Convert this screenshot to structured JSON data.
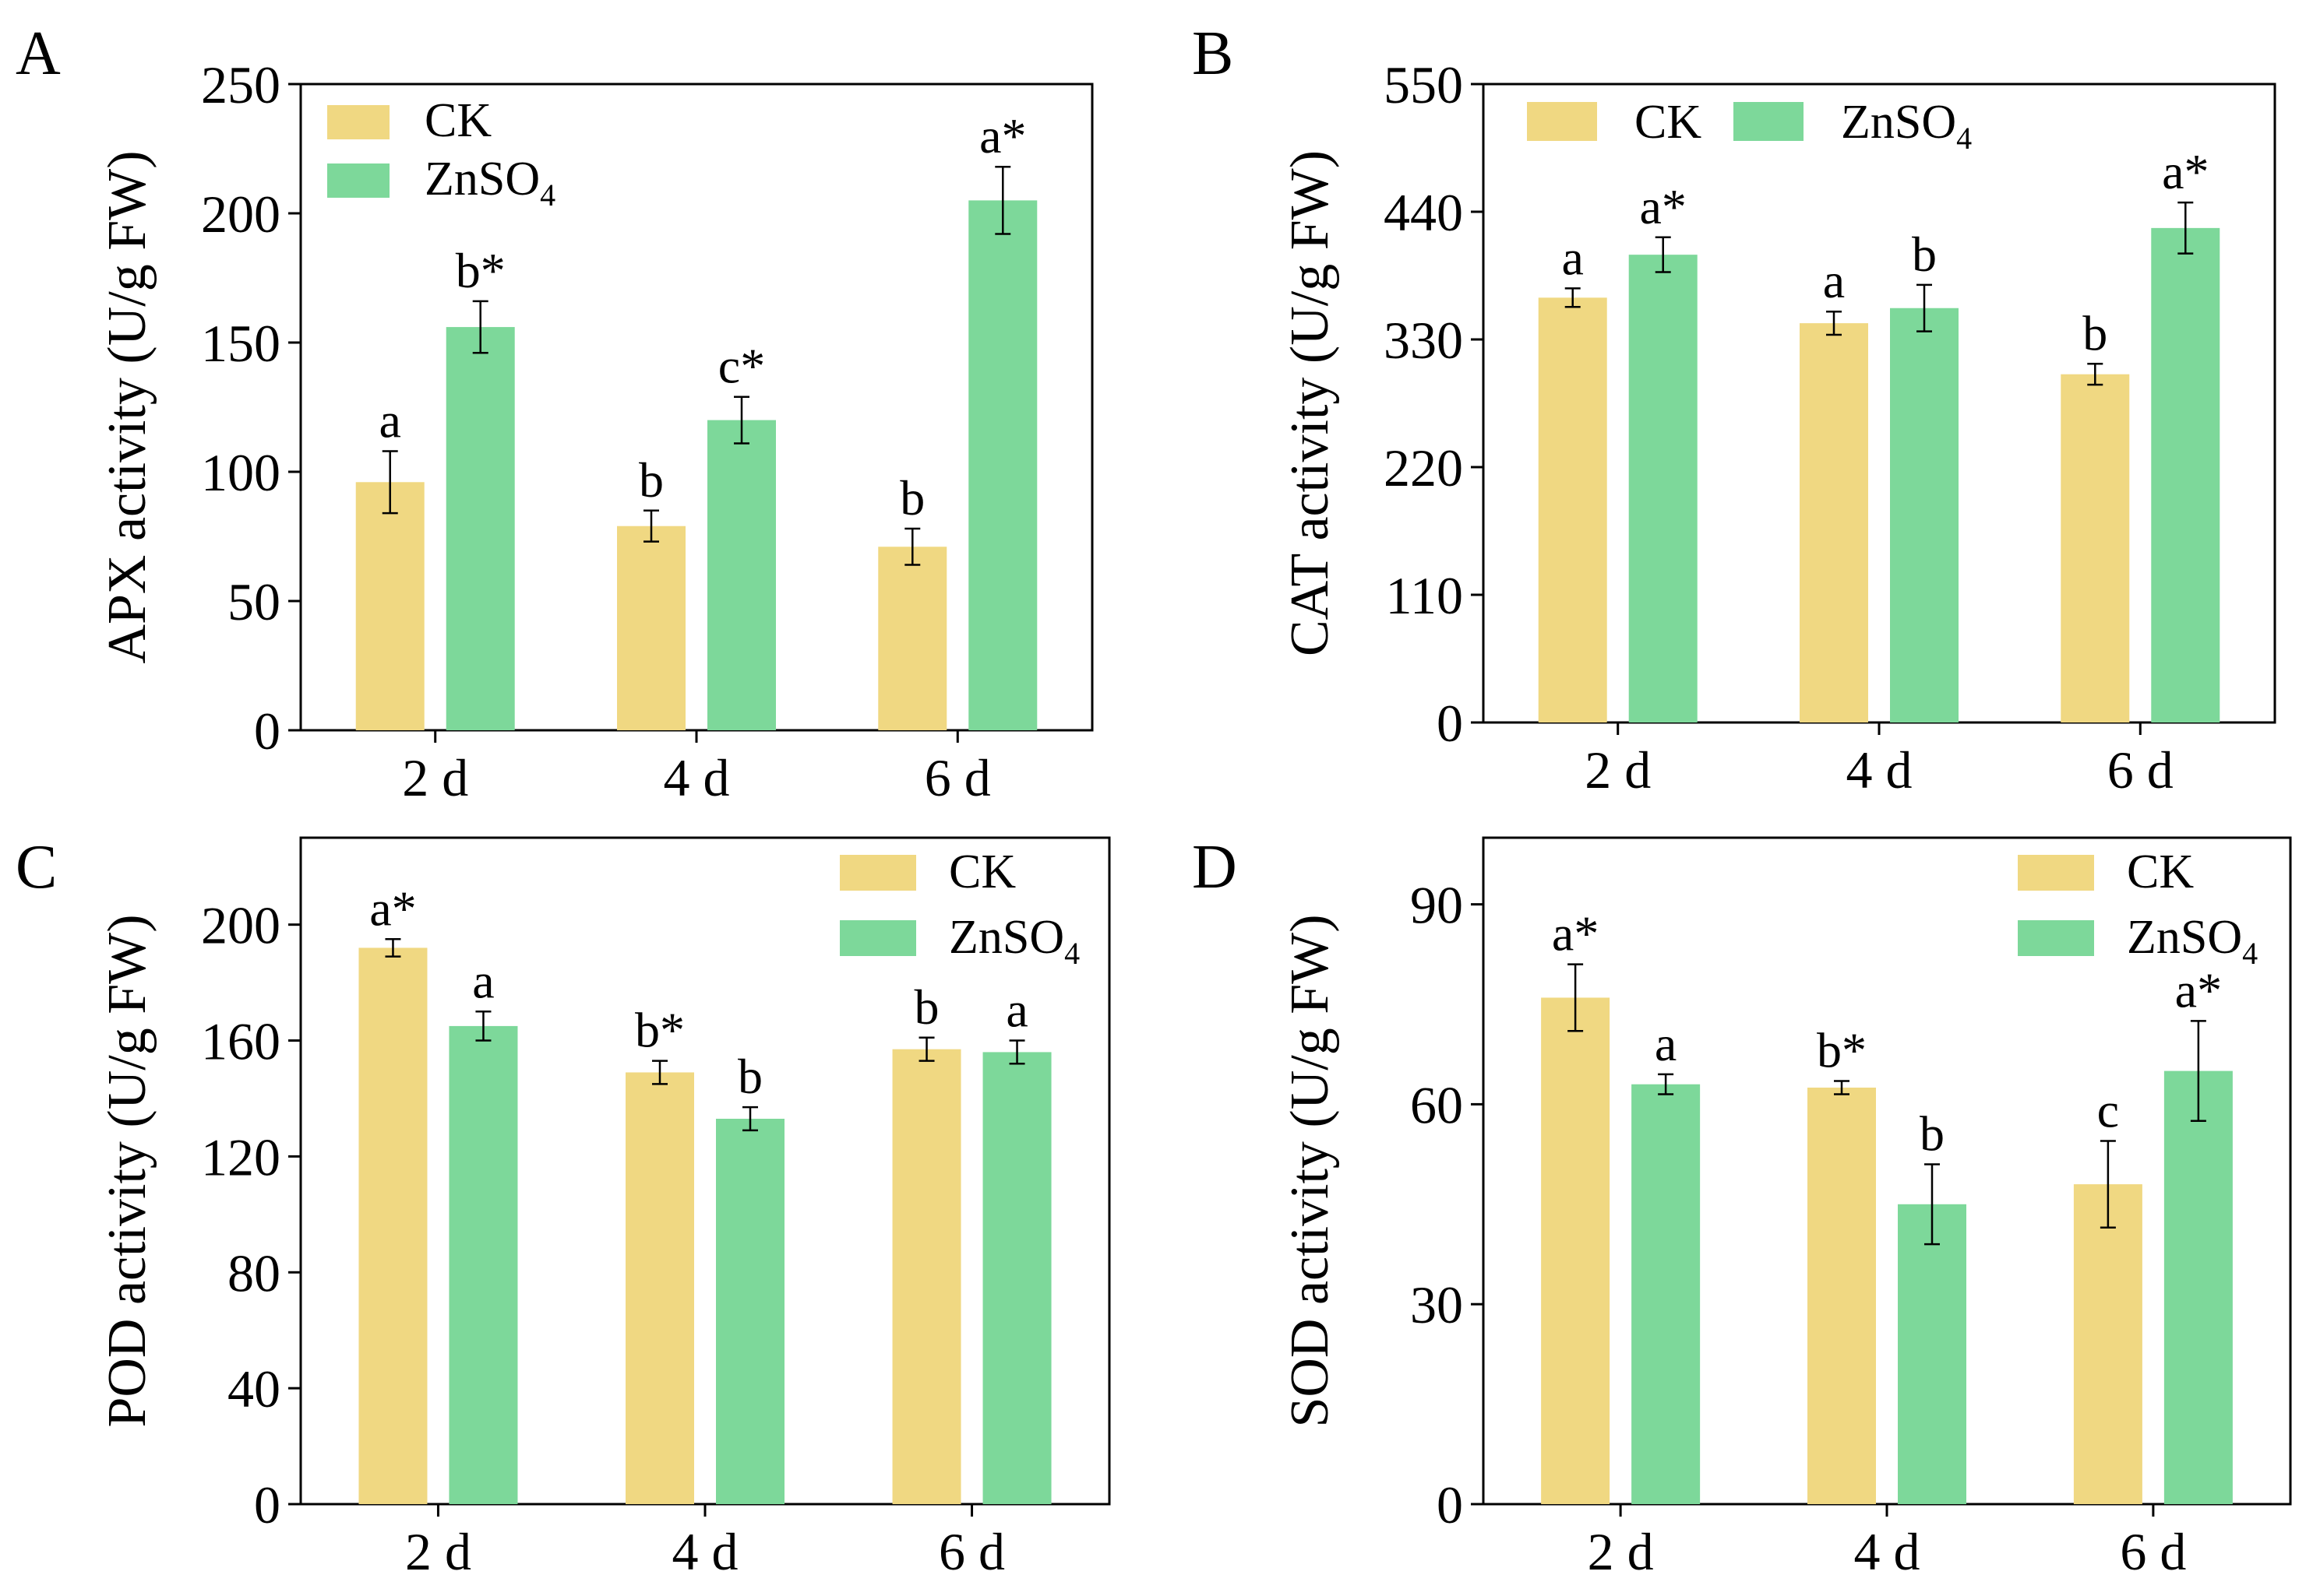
{
  "colors": {
    "ck": "#F0D882",
    "znso4": "#7DD89A"
  },
  "chart_data": [
    {
      "panel_label": "A",
      "type": "bar",
      "categories": [
        "2 d",
        "4 d",
        "6 d"
      ],
      "ylabel": "APX activity (U/g FW)",
      "ylim": [
        0,
        250
      ],
      "yticks": [
        0,
        50,
        100,
        150,
        200,
        250
      ],
      "legend": {
        "placement": "top-left",
        "layout": "vertical"
      },
      "series": [
        {
          "name": "CK",
          "values": [
            96,
            79,
            71
          ],
          "errors": [
            12,
            6,
            7
          ],
          "labels": [
            "a",
            "b",
            "b"
          ]
        },
        {
          "name": "ZnSO4",
          "name_main": "ZnSO",
          "name_sub": "4",
          "values": [
            156,
            120,
            205
          ],
          "errors": [
            10,
            9,
            13
          ],
          "labels": [
            "b*",
            "c*",
            "a*"
          ]
        }
      ]
    },
    {
      "panel_label": "B",
      "type": "bar",
      "categories": [
        "2 d",
        "4 d",
        "6 d"
      ],
      "ylabel": "CAT activity (U/g FW)",
      "ylim": [
        0,
        550
      ],
      "yticks": [
        0,
        110,
        220,
        330,
        440,
        550
      ],
      "legend": {
        "placement": "top",
        "layout": "horizontal"
      },
      "series": [
        {
          "name": "CK",
          "values": [
            366,
            344,
            300
          ],
          "errors": [
            8,
            10,
            9
          ],
          "labels": [
            "a",
            "a",
            "b"
          ]
        },
        {
          "name": "ZnSO4",
          "name_main": "ZnSO",
          "name_sub": "4",
          "values": [
            403,
            357,
            426
          ],
          "errors": [
            15,
            20,
            22
          ],
          "labels": [
            "a*",
            "b",
            "a*"
          ]
        }
      ]
    },
    {
      "panel_label": "C",
      "type": "bar",
      "categories": [
        "2 d",
        "4 d",
        "6 d"
      ],
      "ylabel": "POD activity (U/g FW)",
      "ylim": [
        0,
        230
      ],
      "yticks": [
        0,
        40,
        80,
        120,
        160,
        200
      ],
      "legend": {
        "placement": "top-right",
        "layout": "vertical"
      },
      "series": [
        {
          "name": "CK",
          "values": [
            192,
            149,
            157
          ],
          "errors": [
            3,
            4,
            4
          ],
          "labels": [
            "a*",
            "b*",
            "b"
          ]
        },
        {
          "name": "ZnSO4",
          "name_main": "ZnSO",
          "name_sub": "4",
          "values": [
            165,
            133,
            156
          ],
          "errors": [
            5,
            4,
            4
          ],
          "labels": [
            "a",
            "b",
            "a"
          ]
        }
      ]
    },
    {
      "panel_label": "D",
      "type": "bar",
      "categories": [
        "2 d",
        "4 d",
        "6 d"
      ],
      "ylabel": "SOD activity (U/g FW)",
      "ylim": [
        0,
        100
      ],
      "yticks": [
        0,
        30,
        60,
        90
      ],
      "legend": {
        "placement": "top-right",
        "layout": "vertical"
      },
      "series": [
        {
          "name": "CK",
          "values": [
            76,
            62.5,
            48
          ],
          "errors": [
            5,
            1,
            6.5
          ],
          "labels": [
            "a*",
            "b*",
            "c"
          ]
        },
        {
          "name": "ZnSO4",
          "name_main": "ZnSO",
          "name_sub": "4",
          "values": [
            63,
            45,
            65
          ],
          "errors": [
            1.5,
            6,
            7.5
          ],
          "labels": [
            "a",
            "b",
            "a*"
          ]
        }
      ]
    }
  ]
}
